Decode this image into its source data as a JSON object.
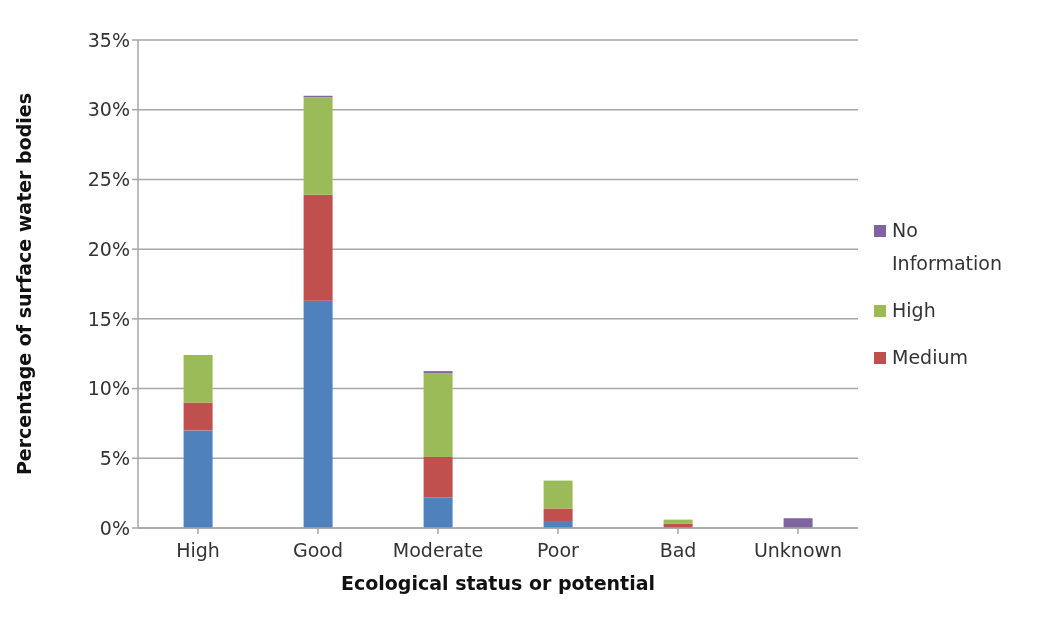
{
  "chart_data": {
    "type": "bar",
    "stacked": true,
    "xlabel": "Ecological  status or potential",
    "ylabel": "Percentage of surface water bodies",
    "categories": [
      "High",
      "Good",
      "Moderate",
      "Poor",
      "Bad",
      "Unknown"
    ],
    "series": [
      {
        "color": "#4f81bd",
        "values": [
          7.0,
          16.3,
          2.2,
          0.5,
          0,
          0
        ]
      },
      {
        "name": "Medium",
        "color": "#c0504d",
        "values": [
          2.0,
          7.6,
          2.9,
          0.9,
          0.3,
          0
        ]
      },
      {
        "name": "High",
        "color": "#9bbb59",
        "values": [
          3.4,
          7.0,
          6.0,
          2.0,
          0.3,
          0
        ]
      },
      {
        "name": "No Information",
        "color": "#8064a2",
        "values": [
          0,
          0.1,
          0.15,
          0,
          0,
          0.7
        ]
      }
    ],
    "ylim": [
      0,
      35
    ],
    "yticks": [
      {
        "value": 0,
        "label": "0%"
      },
      {
        "value": 5,
        "label": "5%"
      },
      {
        "value": 10,
        "label": "10%"
      },
      {
        "value": 15,
        "label": "15%"
      },
      {
        "value": 20,
        "label": "20%"
      },
      {
        "value": 25,
        "label": "25%"
      },
      {
        "value": 30,
        "label": "30%"
      },
      {
        "value": 35,
        "label": "35%"
      }
    ],
    "grid": "y",
    "legend": "right"
  }
}
